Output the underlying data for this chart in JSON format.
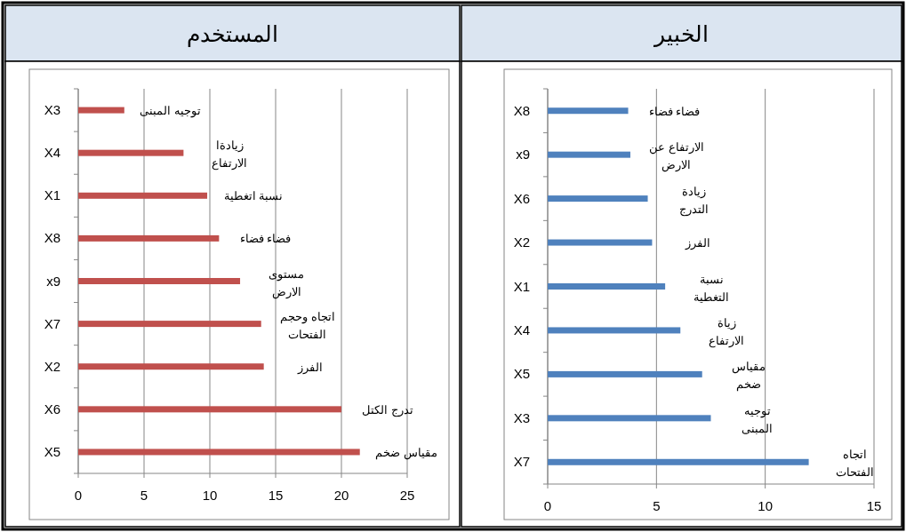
{
  "chart_data": [
    {
      "type": "bar",
      "orientation": "horizontal",
      "title": "المستخدم",
      "categories": [
        "X3",
        "X4",
        "X1",
        "X8",
        "x9",
        "X7",
        "X2",
        "X6",
        "X5"
      ],
      "values": [
        3.5,
        8.0,
        9.8,
        10.7,
        12.3,
        13.9,
        14.1,
        20.0,
        21.4
      ],
      "color": "#c0504d",
      "xlim": [
        0,
        25
      ],
      "xticks": [
        0,
        5,
        10,
        15,
        20,
        25
      ],
      "grid": "x",
      "annotations": [
        {
          "text": "توجيه المبنى",
          "x": 3.5,
          "y": "X3"
        },
        {
          "text": "زيادةا\nالارتفاع",
          "x": 8.0,
          "y": "X4"
        },
        {
          "text": "نسبة اتغطية",
          "x": 9.8,
          "y": "X1"
        },
        {
          "text": "فضاء فضاء",
          "x": 10.7,
          "y": "X8"
        },
        {
          "text": "مستوى\nالارض",
          "x": 12.3,
          "y": "x9"
        },
        {
          "text": "اتجاه وحجم\nالفتحات",
          "x": 13.9,
          "y": "X7"
        },
        {
          "text": "الفرز",
          "x": 14.1,
          "y": "X2"
        },
        {
          "text": "تدرج الكتل",
          "x": 20.0,
          "y": "X6"
        },
        {
          "text": "مقياس ضخم",
          "x": 21.4,
          "y": "X5"
        }
      ]
    },
    {
      "type": "bar",
      "orientation": "horizontal",
      "title": "الخبير",
      "categories": [
        "X8",
        "x9",
        "X6",
        "X2",
        "X1",
        "X4",
        "X5",
        "X3",
        "X7"
      ],
      "values": [
        3.7,
        3.8,
        4.6,
        4.8,
        5.4,
        6.1,
        7.1,
        7.5,
        12.0
      ],
      "color": "#4f81bd",
      "xlim": [
        0,
        15
      ],
      "xticks": [
        0,
        5,
        10,
        15
      ],
      "grid": "x",
      "annotations": [
        {
          "text": "فضاء فضاء",
          "x": 3.7,
          "y": "X8"
        },
        {
          "text": "الارتفاع عن\nالارض",
          "x": 3.8,
          "y": "x9"
        },
        {
          "text": "زيادة\nالتدرج",
          "x": 4.6,
          "y": "X6"
        },
        {
          "text": "الفرز",
          "x": 4.8,
          "y": "X2"
        },
        {
          "text": "نسبة\nالتغطية",
          "x": 5.4,
          "y": "X1"
        },
        {
          "text": "زياة\nالارتفاع",
          "x": 6.1,
          "y": "X4"
        },
        {
          "text": "مقياس\nضخم",
          "x": 7.1,
          "y": "X5"
        },
        {
          "text": "توجيه\nالمبنى",
          "x": 7.5,
          "y": "X3"
        },
        {
          "text": "اتجاه\nالفتحات",
          "x": 12.0,
          "y": "X7"
        }
      ]
    }
  ]
}
